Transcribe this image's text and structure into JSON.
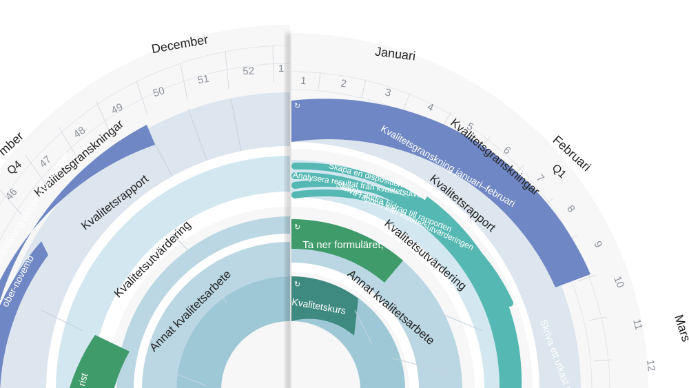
{
  "app": {
    "name": "Årshjul",
    "colors": {
      "background": "#ffffff",
      "outer_ring": "#f7f7f8",
      "month_text": "#222222",
      "week_text": "#8a8f98",
      "ring_gap": "#ffffff",
      "ring1_bg": "#dde5ee",
      "ring2_bg": "#d3e7f1",
      "ring3_bg": "#bad7e3",
      "ring4_bg": "#9fc8d6",
      "activity_blue": "#6f87c4",
      "activity_teal": "#56b8b2",
      "activity_green": "#3f9b6a",
      "activity_darkteal": "#3f8a80"
    }
  },
  "months": [
    {
      "label": "December"
    },
    {
      "label": "Januari"
    },
    {
      "label": "Februari"
    },
    {
      "label": "Mars"
    },
    {
      "label": "mber"
    }
  ],
  "quarters": [
    {
      "label": "Q4"
    },
    {
      "label": "Q1"
    }
  ],
  "weeks": [
    "46",
    "47",
    "48",
    "49",
    "50",
    "51",
    "52",
    "1",
    "1",
    "2",
    "3",
    "4",
    "5",
    "6",
    "7",
    "8",
    "9",
    "10",
    "11",
    "12"
  ],
  "rings": [
    {
      "title_left": "Kvalitetsgranskningar",
      "title_right": "Kvalitetsgranskningar"
    },
    {
      "title_left": "Kvalitetsrapport",
      "title_right": "Kvalitetsrapport"
    },
    {
      "title_left": "Kvalitetsutvärdering",
      "title_right": "Kvalitetsutvärdering"
    },
    {
      "title_left": "Annat kvalitetsarbete",
      "title_right": "Annat kvalitetsarbete"
    }
  ],
  "activities": [
    {
      "label": "Kvalitetsgranskning januari–februari",
      "icon": "recurring-icon"
    },
    {
      "label": "Kvalitetsgranskning oktober–november",
      "visible_text": "ning oktober-november"
    },
    {
      "label": "ober-novemb",
      "visible_text": "ober-novemb"
    },
    {
      "label": "Skapa en disposition"
    },
    {
      "label": "Analysera resultat från kvalitetsutvä"
    },
    {
      "label": "Samla andra bidrag till rapporten"
    },
    {
      "label": "Skriva rapport från kvalitetsutvärderingen"
    },
    {
      "label": "Skriva ett utkast t"
    },
    {
      "label": "Ta ner formuläret,",
      "icon": "recurring-icon"
    },
    {
      "label": "Kvalitetskurs",
      "icon": "recurring-icon"
    },
    {
      "label": "rist"
    }
  ]
}
